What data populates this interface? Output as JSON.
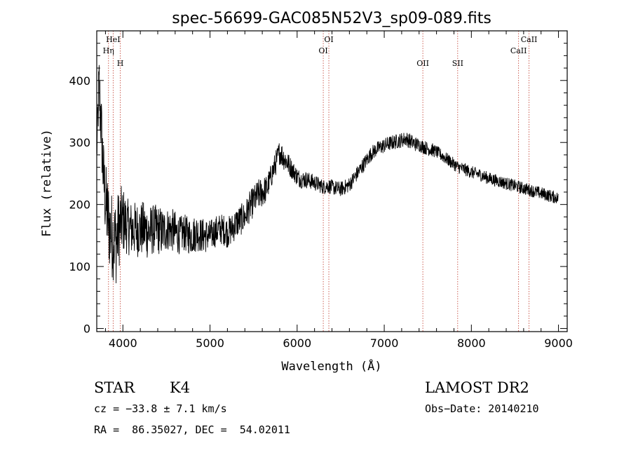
{
  "chart_data": {
    "type": "line",
    "title": "spec-56699-GAC085N52V3_sp09-089.fits",
    "xlabel": "Wavelength (Å)",
    "ylabel": "Flux (relative)",
    "xlim": [
      3700,
      9100
    ],
    "ylim": [
      -5,
      480
    ],
    "x_ticks": [
      4000,
      5000,
      6000,
      7000,
      8000,
      9000
    ],
    "y_ticks": [
      0,
      100,
      200,
      300,
      400
    ],
    "grid": false,
    "series": [
      {
        "color": "#000000",
        "x": [
          3700,
          3725,
          3750,
          3775,
          3800,
          3825,
          3850,
          3875,
          3900,
          3925,
          3950,
          3975,
          4000,
          4050,
          4100,
          4150,
          4200,
          4250,
          4300,
          4350,
          4400,
          4450,
          4500,
          4550,
          4600,
          4650,
          4700,
          4750,
          4800,
          4850,
          4900,
          4950,
          5000,
          5050,
          5100,
          5150,
          5200,
          5250,
          5300,
          5350,
          5400,
          5450,
          5500,
          5550,
          5600,
          5650,
          5700,
          5750,
          5800,
          5850,
          5900,
          5950,
          6000,
          6050,
          6100,
          6150,
          6200,
          6250,
          6300,
          6350,
          6400,
          6450,
          6500,
          6550,
          6600,
          6650,
          6700,
          6750,
          6800,
          6850,
          6900,
          6950,
          7000,
          7050,
          7100,
          7150,
          7200,
          7250,
          7300,
          7350,
          7400,
          7450,
          7500,
          7550,
          7600,
          7650,
          7700,
          7750,
          7800,
          7850,
          7900,
          7950,
          8000,
          8050,
          8100,
          8150,
          8200,
          8250,
          8300,
          8350,
          8400,
          8450,
          8500,
          8550,
          8600,
          8650,
          8700,
          8750,
          8800,
          8850,
          8900,
          8950,
          9000
        ],
        "y": [
          280,
          390,
          330,
          250,
          205,
          180,
          160,
          150,
          145,
          140,
          160,
          170,
          175,
          165,
          160,
          160,
          160,
          160,
          155,
          160,
          160,
          155,
          160,
          160,
          155,
          150,
          155,
          150,
          150,
          155,
          150,
          150,
          150,
          155,
          160,
          160,
          155,
          160,
          170,
          175,
          180,
          195,
          205,
          215,
          220,
          225,
          245,
          265,
          285,
          275,
          265,
          255,
          245,
          240,
          240,
          238,
          235,
          232,
          228,
          230,
          228,
          226,
          225,
          228,
          232,
          242,
          252,
          262,
          272,
          282,
          288,
          292,
          295,
          298,
          300,
          302,
          304,
          306,
          302,
          298,
          296,
          293,
          290,
          288,
          285,
          280,
          275,
          270,
          265,
          260,
          258,
          255,
          252,
          250,
          248,
          245,
          242,
          240,
          238,
          236,
          234,
          232,
          230,
          228,
          226,
          224,
          222,
          220,
          218,
          216,
          214,
          212,
          210
        ],
        "noise_amplitude": [
          25,
          60,
          60,
          60,
          65,
          70,
          70,
          70,
          70,
          70,
          65,
          60,
          55,
          45,
          45,
          45,
          45,
          45,
          45,
          40,
          40,
          40,
          35,
          35,
          35,
          30,
          30,
          30,
          30,
          30,
          28,
          28,
          25,
          25,
          25,
          25,
          25,
          25,
          25,
          25,
          25,
          25,
          25,
          25,
          25,
          22,
          20,
          20,
          20,
          20,
          18,
          15,
          15,
          14,
          14,
          13,
          13,
          12,
          12,
          12,
          12,
          12,
          12,
          12,
          12,
          12,
          12,
          12,
          12,
          12,
          12,
          12,
          12,
          12,
          12,
          12,
          12,
          12,
          12,
          12,
          11,
          11,
          11,
          11,
          10,
          10,
          10,
          10,
          10,
          10,
          10,
          10,
          10,
          10,
          10,
          10,
          10,
          10,
          10,
          10,
          10,
          10,
          10,
          10,
          10,
          10,
          10,
          10,
          10,
          10,
          10,
          10,
          10
        ]
      }
    ],
    "annotations": [
      {
        "label": "HeI",
        "x": 3888,
        "row": 0
      },
      {
        "label": "Hη",
        "x": 3835,
        "row": 1
      },
      {
        "label": "H",
        "x": 3970,
        "row": 2
      },
      {
        "label": "OI",
        "x": 6364,
        "row": 0
      },
      {
        "label": "OI",
        "x": 6300,
        "row": 1
      },
      {
        "label": "OII",
        "x": 7443,
        "row": 2
      },
      {
        "label": "SII",
        "x": 7843,
        "row": 2
      },
      {
        "label": "CaII",
        "x": 8662,
        "row": 0
      },
      {
        "label": "CaII",
        "x": 8542,
        "row": 1
      }
    ],
    "line_markers": [
      3835,
      3888,
      3970,
      6300,
      6364,
      7443,
      7843,
      8542,
      8662
    ]
  },
  "info": {
    "class": "STAR",
    "subclass": "K4",
    "survey": "LAMOST DR2",
    "cz": "cz = −33.8 ± 7.1 km/s",
    "obs_date": "Obs−Date: 20140210",
    "coords": "RA =  86.35027, DEC =  54.02011"
  }
}
